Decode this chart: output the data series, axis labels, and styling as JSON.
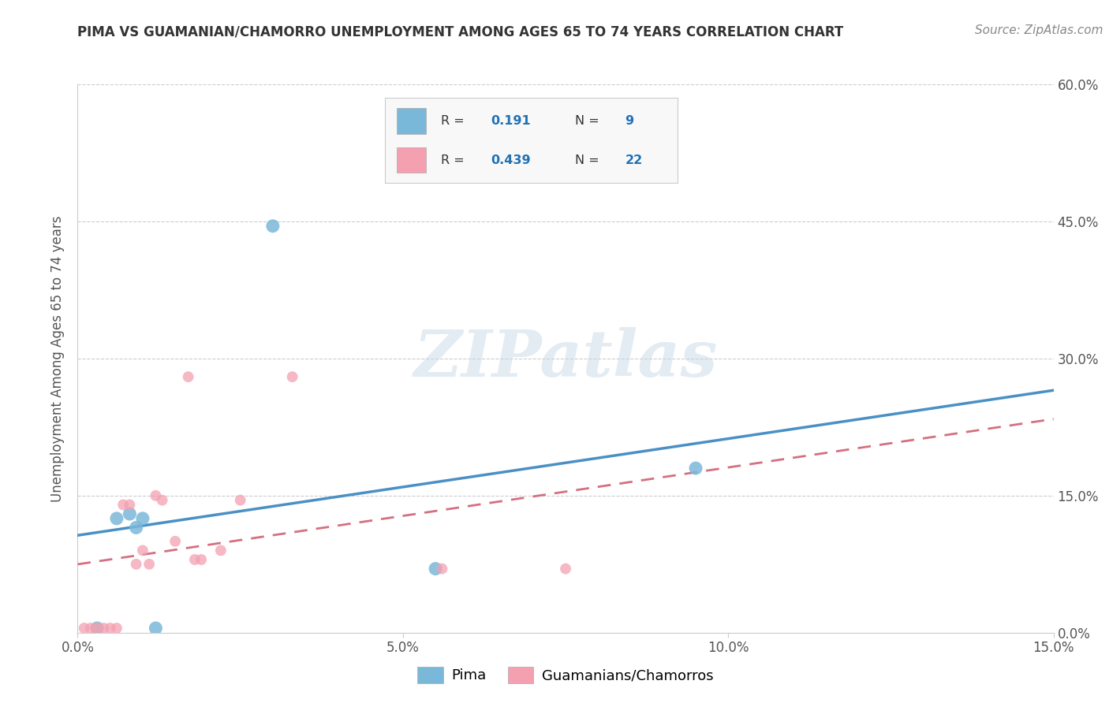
{
  "title": "PIMA VS GUAMANIAN/CHAMORRO UNEMPLOYMENT AMONG AGES 65 TO 74 YEARS CORRELATION CHART",
  "source": "Source: ZipAtlas.com",
  "ylabel": "Unemployment Among Ages 65 to 74 years",
  "xlim": [
    0.0,
    0.15
  ],
  "ylim": [
    0.0,
    0.6
  ],
  "xticks": [
    0.0,
    0.05,
    0.1,
    0.15
  ],
  "yticks": [
    0.0,
    0.15,
    0.3,
    0.45,
    0.6
  ],
  "xtick_labels": [
    "0.0%",
    "5.0%",
    "10.0%",
    "15.0%"
  ],
  "ytick_labels": [
    "0.0%",
    "15.0%",
    "30.0%",
    "45.0%",
    "60.0%"
  ],
  "pima_color": "#7ab8d9",
  "chamorro_color": "#f4a0b0",
  "pima_line_color": "#4a90c4",
  "chamorro_line_color": "#d47080",
  "pima_R": 0.191,
  "pima_N": 9,
  "chamorro_R": 0.439,
  "chamorro_N": 22,
  "pima_points": [
    [
      0.003,
      0.005
    ],
    [
      0.006,
      0.125
    ],
    [
      0.008,
      0.13
    ],
    [
      0.009,
      0.115
    ],
    [
      0.01,
      0.125
    ],
    [
      0.012,
      0.005
    ],
    [
      0.055,
      0.07
    ],
    [
      0.03,
      0.445
    ],
    [
      0.095,
      0.18
    ]
  ],
  "chamorro_points": [
    [
      0.001,
      0.005
    ],
    [
      0.002,
      0.005
    ],
    [
      0.003,
      0.005
    ],
    [
      0.004,
      0.005
    ],
    [
      0.005,
      0.005
    ],
    [
      0.006,
      0.005
    ],
    [
      0.007,
      0.14
    ],
    [
      0.008,
      0.14
    ],
    [
      0.009,
      0.075
    ],
    [
      0.01,
      0.09
    ],
    [
      0.011,
      0.075
    ],
    [
      0.012,
      0.15
    ],
    [
      0.013,
      0.145
    ],
    [
      0.015,
      0.1
    ],
    [
      0.017,
      0.28
    ],
    [
      0.018,
      0.08
    ],
    [
      0.019,
      0.08
    ],
    [
      0.022,
      0.09
    ],
    [
      0.025,
      0.145
    ],
    [
      0.033,
      0.28
    ],
    [
      0.056,
      0.07
    ],
    [
      0.075,
      0.07
    ]
  ],
  "background_color": "#ffffff",
  "watermark_text": "ZIPatlas",
  "grid_color": "#cccccc",
  "tick_label_color": "#555555",
  "title_color": "#333333",
  "source_color": "#888888"
}
